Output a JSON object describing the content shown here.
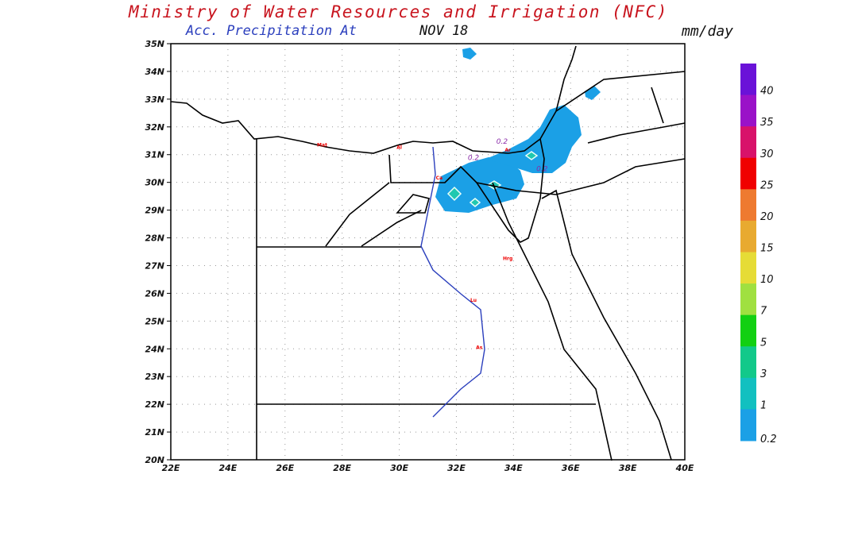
{
  "header": {
    "title": "Ministry of Water Resources and Irrigation (NFC)",
    "subtitle": "Acc. Precipitation  At",
    "date": "NOV 18",
    "units": "mm/day"
  },
  "axes": {
    "lat_labels": [
      "35N",
      "34N",
      "33N",
      "32N",
      "31N",
      "30N",
      "29N",
      "28N",
      "27N",
      "26N",
      "25N",
      "24N",
      "23N",
      "22N",
      "21N",
      "20N"
    ],
    "lon_labels": [
      "22E",
      "24E",
      "26E",
      "28E",
      "30E",
      "32E",
      "34E",
      "36E",
      "38E",
      "40E"
    ],
    "lat_range": [
      20,
      35
    ],
    "lon_range": [
      22,
      40
    ]
  },
  "colorbar": {
    "levels": [
      "40",
      "35",
      "30",
      "25",
      "20",
      "15",
      "10",
      "7",
      "5",
      "3",
      "1",
      "0.2"
    ],
    "colors": [
      "#6a12d8",
      "#9a12c8",
      "#d8126a",
      "#f00000",
      "#ee7a30",
      "#e8aa30",
      "#e6dc36",
      "#a0e040",
      "#12d012",
      "#12c98a",
      "#12c0c0",
      "#1ba0e6"
    ]
  },
  "stations": [
    {
      "label": "Mat",
      "lon": 27.3,
      "lat": 31.3
    },
    {
      "label": "Al",
      "lon": 30.0,
      "lat": 31.2
    },
    {
      "label": "Ca",
      "lon": 31.4,
      "lat": 30.1
    },
    {
      "label": "Ar",
      "lon": 33.8,
      "lat": 31.1
    },
    {
      "label": "Hrg",
      "lon": 33.8,
      "lat": 27.2
    },
    {
      "label": "Lu",
      "lon": 32.6,
      "lat": 25.7
    },
    {
      "label": "As",
      "lon": 32.8,
      "lat": 24.0
    }
  ],
  "contour_labels": [
    {
      "label": "0.2",
      "lon": 33.6,
      "lat": 31.4
    },
    {
      "label": "0.2",
      "lon": 32.6,
      "lat": 30.8
    },
    {
      "label": "0.2",
      "lon": 35.0,
      "lat": 30.4
    }
  ]
}
